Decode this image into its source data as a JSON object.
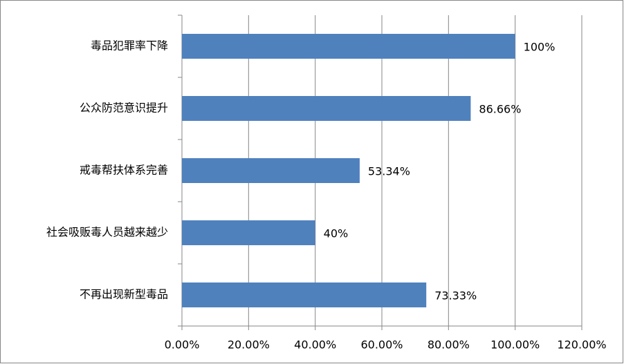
{
  "chart_data": {
    "type": "bar",
    "orientation": "horizontal",
    "categories": [
      "毒品犯罪率下降",
      "公众防范意识提升",
      "戒毒帮扶体系完善",
      "社会吸贩毒人员越来越少",
      "不再出现新型毒品"
    ],
    "values": [
      100,
      86.66,
      53.34,
      40,
      73.33
    ],
    "value_labels": [
      "100%",
      "86.66%",
      "53.34%",
      "40%",
      "73.33%"
    ],
    "color": "#4f81bd",
    "xlim": [
      0,
      120
    ],
    "xticks": [
      {
        "value": 0,
        "label": "0.00%"
      },
      {
        "value": 20,
        "label": "20.00%"
      },
      {
        "value": 40,
        "label": "40.00%"
      },
      {
        "value": 60,
        "label": "60.00%"
      },
      {
        "value": 80,
        "label": "80.00%"
      },
      {
        "value": 100,
        "label": "100.00%"
      },
      {
        "value": 120,
        "label": "120.00%"
      }
    ],
    "grid": true
  }
}
